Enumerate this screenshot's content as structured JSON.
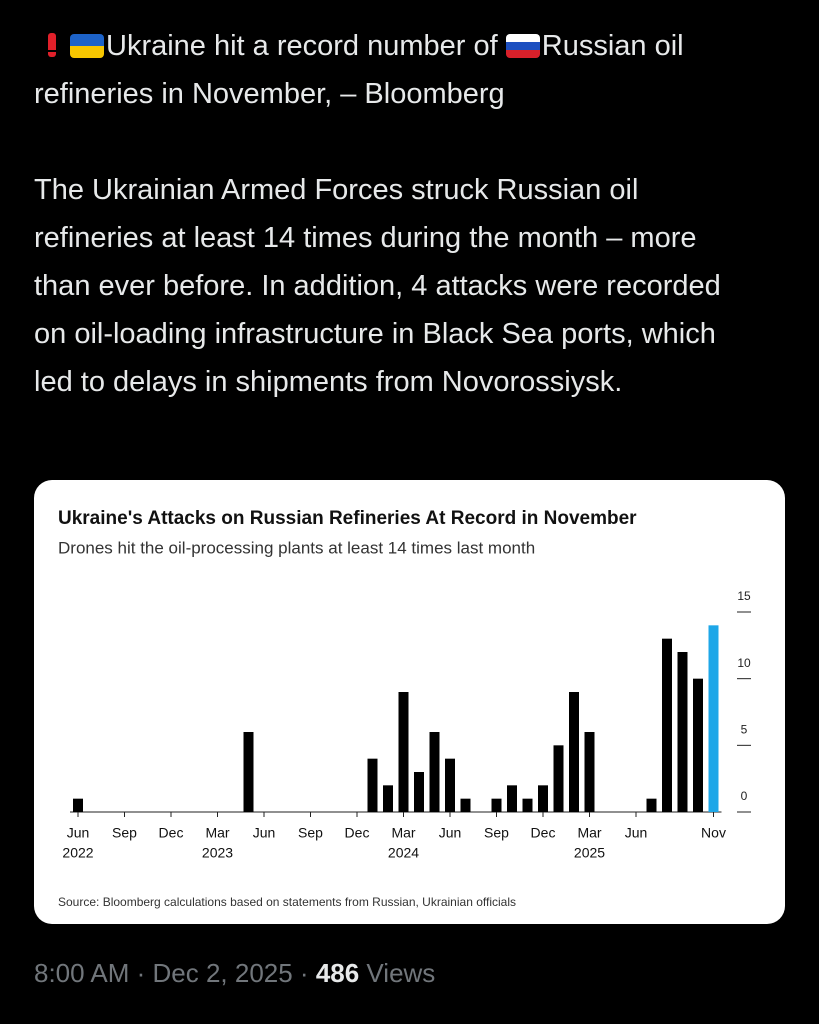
{
  "tweet": {
    "headline_part1": "Ukraine hit a record number of ",
    "headline_part2": "Russian oil refineries in November, – Bloomberg",
    "body": "The Ukrainian Armed Forces struck Russian oil refineries at least 14 times during the month – more than ever before. In addition, 4 attacks were recorded on oil-loading infrastructure in Black Sea ports, which led to delays in shipments from Novorossiysk."
  },
  "chart_data": {
    "type": "bar",
    "title": "Ukraine's Attacks on Russian Refineries At Record in November",
    "subtitle": "Drones hit the oil-processing plants at least 14 times last month",
    "source": "Source: Bloomberg calculations based on statements from Russian, Ukrainian officials",
    "categories": [
      "Jun",
      null,
      null,
      "Sep",
      null,
      null,
      "Dec",
      null,
      null,
      "Mar",
      null,
      null,
      "Jun",
      null,
      null,
      "Sep",
      null,
      null,
      "Dec",
      null,
      null,
      "Mar",
      null,
      null,
      "Jun",
      null,
      null,
      "Sep",
      null,
      null,
      "Dec",
      null,
      null,
      "Mar",
      null,
      null,
      "Jun",
      null,
      null,
      null,
      null,
      "Nov"
    ],
    "category_years": [
      "2022",
      null,
      null,
      null,
      null,
      null,
      null,
      null,
      null,
      "2023",
      null,
      null,
      null,
      null,
      null,
      null,
      null,
      null,
      null,
      null,
      null,
      "2024",
      null,
      null,
      null,
      null,
      null,
      null,
      null,
      null,
      null,
      null,
      null,
      "2025",
      null,
      null,
      null,
      null,
      null,
      null,
      null,
      null
    ],
    "values": [
      1,
      0,
      0,
      0,
      0,
      0,
      0,
      0,
      0,
      0,
      0,
      6,
      0,
      0,
      0,
      0,
      0,
      0,
      0,
      4,
      2,
      9,
      3,
      6,
      4,
      1,
      0,
      1,
      2,
      1,
      2,
      5,
      9,
      6,
      0,
      0,
      0,
      1,
      13,
      12,
      10,
      14
    ],
    "bar_colors": [
      "#000000",
      "#000000",
      "#000000",
      "#000000",
      "#000000",
      "#000000",
      "#000000",
      "#000000",
      "#000000",
      "#000000",
      "#000000",
      "#000000",
      "#000000",
      "#000000",
      "#000000",
      "#000000",
      "#000000",
      "#000000",
      "#000000",
      "#000000",
      "#000000",
      "#000000",
      "#000000",
      "#000000",
      "#000000",
      "#000000",
      "#000000",
      "#000000",
      "#000000",
      "#000000",
      "#000000",
      "#000000",
      "#000000",
      "#000000",
      "#000000",
      "#000000",
      "#000000",
      "#000000",
      "#000000",
      "#000000",
      "#000000",
      "#1ea7e8"
    ],
    "ylim": [
      0,
      15
    ],
    "yticks": [
      0,
      5,
      10,
      15
    ],
    "y_axis_side": "right"
  },
  "footer": {
    "time": "8:00 AM · Dec 2, 2025 · ",
    "views_count": "486",
    "views_label": " Views"
  }
}
